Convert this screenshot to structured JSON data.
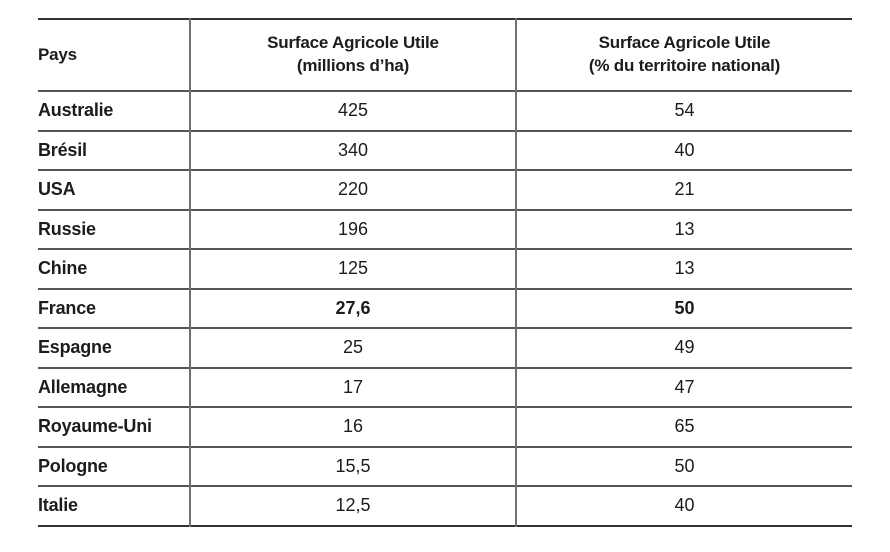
{
  "header": {
    "col1": "Pays",
    "col2": {
      "line1": "Surface Agricole Utile",
      "line2": "(millions d’ha)"
    },
    "col3": {
      "line1": "Surface Agricole Utile",
      "line2": "(% du territoire national)"
    }
  },
  "chart_data": {
    "type": "table",
    "columns": [
      "Pays",
      "Surface Agricole Utile (millions d’ha)",
      "Surface Agricole Utile (% du territoire national)"
    ],
    "rows": [
      [
        "Australie",
        "425",
        "54"
      ],
      [
        "Brésil",
        "340",
        "40"
      ],
      [
        "USA",
        "220",
        "21"
      ],
      [
        "Russie",
        "196",
        "13"
      ],
      [
        "Chine",
        "125",
        "13"
      ],
      [
        "France",
        "27,6",
        "50"
      ],
      [
        "Espagne",
        "25",
        "49"
      ],
      [
        "Allemagne",
        "17",
        "47"
      ],
      [
        "Royaume-Uni",
        "16",
        "65"
      ],
      [
        "Pologne",
        "15,5",
        "50"
      ],
      [
        "Italie",
        "12,5",
        "40"
      ]
    ],
    "emphasized_row": "France",
    "layout": {
      "grid": true,
      "outer_side_borders": false
    }
  }
}
